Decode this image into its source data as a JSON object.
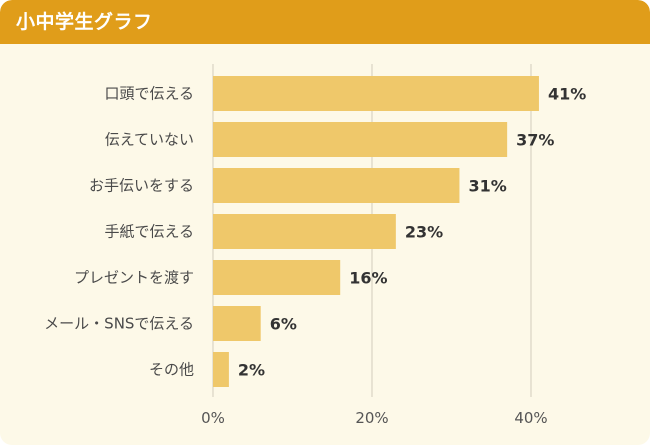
{
  "header": {
    "title": "小中学生グラフ"
  },
  "colors": {
    "header": "#e09d1a",
    "bar": "#efc86a",
    "grid": "#d9d4c3",
    "background": "#fdf9e8"
  },
  "chart_data": {
    "type": "bar",
    "orientation": "horizontal",
    "title": "小中学生グラフ",
    "categories": [
      "口頭で伝える",
      "伝えていない",
      "お手伝いをする",
      "手紙で伝える",
      "プレゼントを渡す",
      "メール・SNSで伝える",
      "その他"
    ],
    "values": [
      41,
      37,
      31,
      23,
      16,
      6,
      2
    ],
    "value_labels": [
      "41%",
      "37%",
      "31%",
      "23%",
      "16%",
      "6%",
      "2%"
    ],
    "xlim": [
      0,
      40
    ],
    "xticks": [
      0,
      20,
      40
    ],
    "xtick_labels": [
      "0%",
      "20%",
      "40%"
    ],
    "grid": true,
    "legend": "none"
  }
}
